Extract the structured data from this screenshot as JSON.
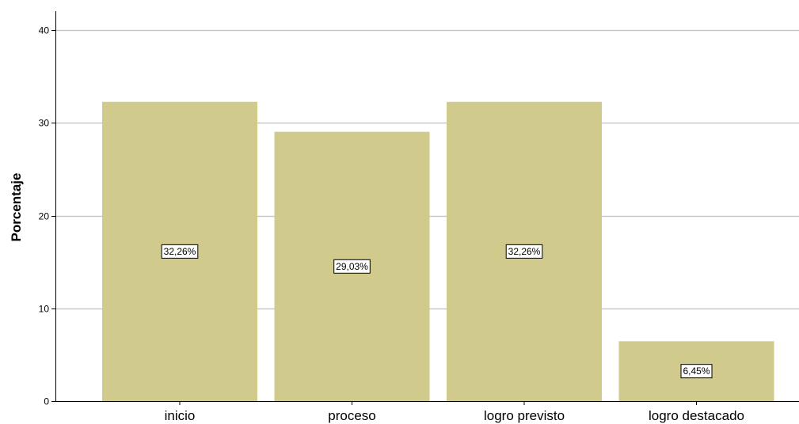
{
  "chart_data": {
    "type": "bar",
    "title": "",
    "xlabel": "",
    "ylabel": "Porcentaje",
    "categories": [
      "inicio",
      "proceso",
      "logro previsto",
      "logro destacado"
    ],
    "values": [
      32.26,
      29.03,
      32.26,
      6.45
    ],
    "data_labels": [
      "32,26%",
      "29,03%",
      "32,26%",
      "6,45%"
    ],
    "ylim": [
      0,
      40
    ],
    "yticks": [
      0,
      10,
      20,
      30,
      40
    ],
    "ytick_labels": [
      "0",
      "10",
      "20",
      "30",
      "40"
    ],
    "grid": true,
    "legend": "none",
    "colors": {
      "bar": "#D0CA8C",
      "gridline": "#C8C8C8",
      "axis": "#000000",
      "label_box_fill": "#FFFFFF",
      "label_box_stroke": "#000000"
    }
  }
}
